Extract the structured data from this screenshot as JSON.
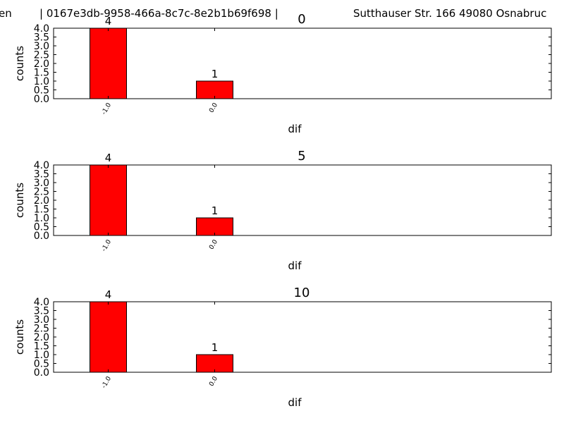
{
  "header": {
    "left": "en",
    "middle": "| 0167e3db-9958-466a-8c7c-8e2b1b69f698 |",
    "right": "Sutthauser Str. 166 49080 Osnabruc"
  },
  "colors": {
    "bar": "#ff0000",
    "axis": "#000000",
    "background": "#ffffff"
  },
  "chart_data": [
    {
      "type": "bar",
      "title": "0",
      "xlabel": "dif",
      "ylabel": "counts",
      "categories": [
        "-1.0",
        "0.0"
      ],
      "values": [
        4,
        1
      ],
      "data_labels": [
        "4",
        "1"
      ],
      "ylim": [
        0,
        4
      ],
      "yticks": [
        "0.0",
        "0.5",
        "1.0",
        "1.5",
        "2.0",
        "2.5",
        "3.0",
        "3.5",
        "4.0"
      ],
      "grid": false
    },
    {
      "type": "bar",
      "title": "5",
      "xlabel": "dif",
      "ylabel": "counts",
      "categories": [
        "-1.0",
        "0.0"
      ],
      "values": [
        4,
        1
      ],
      "data_labels": [
        "4",
        "1"
      ],
      "ylim": [
        0,
        4
      ],
      "yticks": [
        "0.0",
        "0.5",
        "1.0",
        "1.5",
        "2.0",
        "2.5",
        "3.0",
        "3.5",
        "4.0"
      ],
      "grid": false
    },
    {
      "type": "bar",
      "title": "10",
      "xlabel": "dif",
      "ylabel": "counts",
      "categories": [
        "-1.0",
        "0.0"
      ],
      "values": [
        4,
        1
      ],
      "data_labels": [
        "4",
        "1"
      ],
      "ylim": [
        0,
        4
      ],
      "yticks": [
        "0.0",
        "0.5",
        "1.0",
        "1.5",
        "2.0",
        "2.5",
        "3.0",
        "3.5",
        "4.0"
      ],
      "grid": false
    }
  ]
}
